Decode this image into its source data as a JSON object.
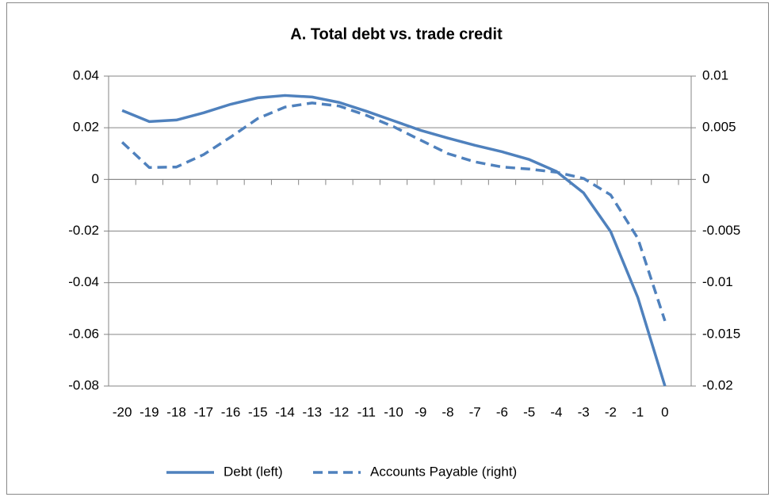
{
  "chart_data": {
    "type": "line",
    "title": "A. Total debt vs. trade credit",
    "categories": [
      "-20",
      "-19",
      "-18",
      "-17",
      "-16",
      "-15",
      "-14",
      "-13",
      "-12",
      "-11",
      "-10",
      "-9",
      "-8",
      "-7",
      "-6",
      "-5",
      "-4",
      "-3",
      "-2",
      "-1",
      "0"
    ],
    "series": [
      {
        "name": "Debt (left)",
        "color": "#4f81bd",
        "dashed": false,
        "axis": "y",
        "values": [
          0.0267,
          0.0224,
          0.023,
          0.0258,
          0.0291,
          0.0316,
          0.0325,
          0.0319,
          0.0298,
          0.0264,
          0.0227,
          0.019,
          0.016,
          0.0132,
          0.0107,
          0.0077,
          0.0031,
          -0.0052,
          -0.0202,
          -0.0457,
          -0.08
        ]
      },
      {
        "name": "Accounts Payable (right)",
        "color": "#4f81bd",
        "dashed": true,
        "axis": "y2",
        "values": [
          0.0036,
          0.00115,
          0.0012,
          0.0024,
          0.0041,
          0.0059,
          0.007,
          0.0074,
          0.0071,
          0.0062,
          0.0051,
          0.0038,
          0.0025,
          0.0017,
          0.0012,
          0.001,
          0.0007,
          0.0001,
          -0.0015,
          -0.0057,
          -0.0137
        ]
      }
    ],
    "ylim": [
      -0.08,
      0.04
    ],
    "yticks": [
      0.04,
      0.02,
      0,
      -0.02,
      -0.04,
      -0.06,
      -0.08
    ],
    "y2lim": [
      -0.02,
      0.01
    ],
    "y2ticks": [
      0.01,
      0.005,
      0,
      -0.005,
      -0.01,
      -0.015,
      -0.02
    ],
    "grid": true,
    "legend": "bottom"
  }
}
